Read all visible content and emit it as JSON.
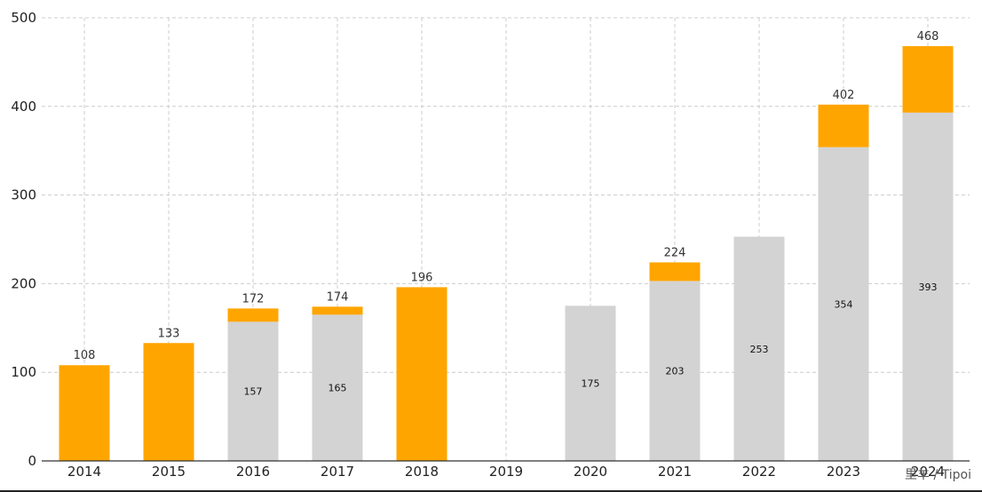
{
  "chart_data": {
    "type": "bar",
    "stacked": true,
    "categories": [
      "2014",
      "2015",
      "2016",
      "2017",
      "2018",
      "2019",
      "2020",
      "2021",
      "2022",
      "2023",
      "2024"
    ],
    "series": [
      {
        "color": "#d3d3d3",
        "values": [
          0,
          0,
          157,
          165,
          0,
          0,
          175,
          203,
          253,
          354,
          393
        ]
      },
      {
        "color": "#ffa500",
        "values": [
          108,
          133,
          15,
          9,
          196,
          0,
          0,
          21,
          0,
          48,
          75
        ]
      }
    ],
    "inner_labels": [
      "",
      "",
      "157",
      "165",
      "",
      "",
      "175",
      "203",
      "253",
      "354",
      "393"
    ],
    "total_labels": [
      "108",
      "133",
      "172",
      "174",
      "196",
      "",
      "",
      "224",
      "",
      "402",
      "468"
    ],
    "ylim": [
      0,
      500
    ],
    "yticks": [
      0,
      100,
      200,
      300,
      400,
      500
    ],
    "grid": true,
    "xlabel": "",
    "ylabel": "",
    "title": ""
  },
  "watermark": "里羊 / Tipoi"
}
